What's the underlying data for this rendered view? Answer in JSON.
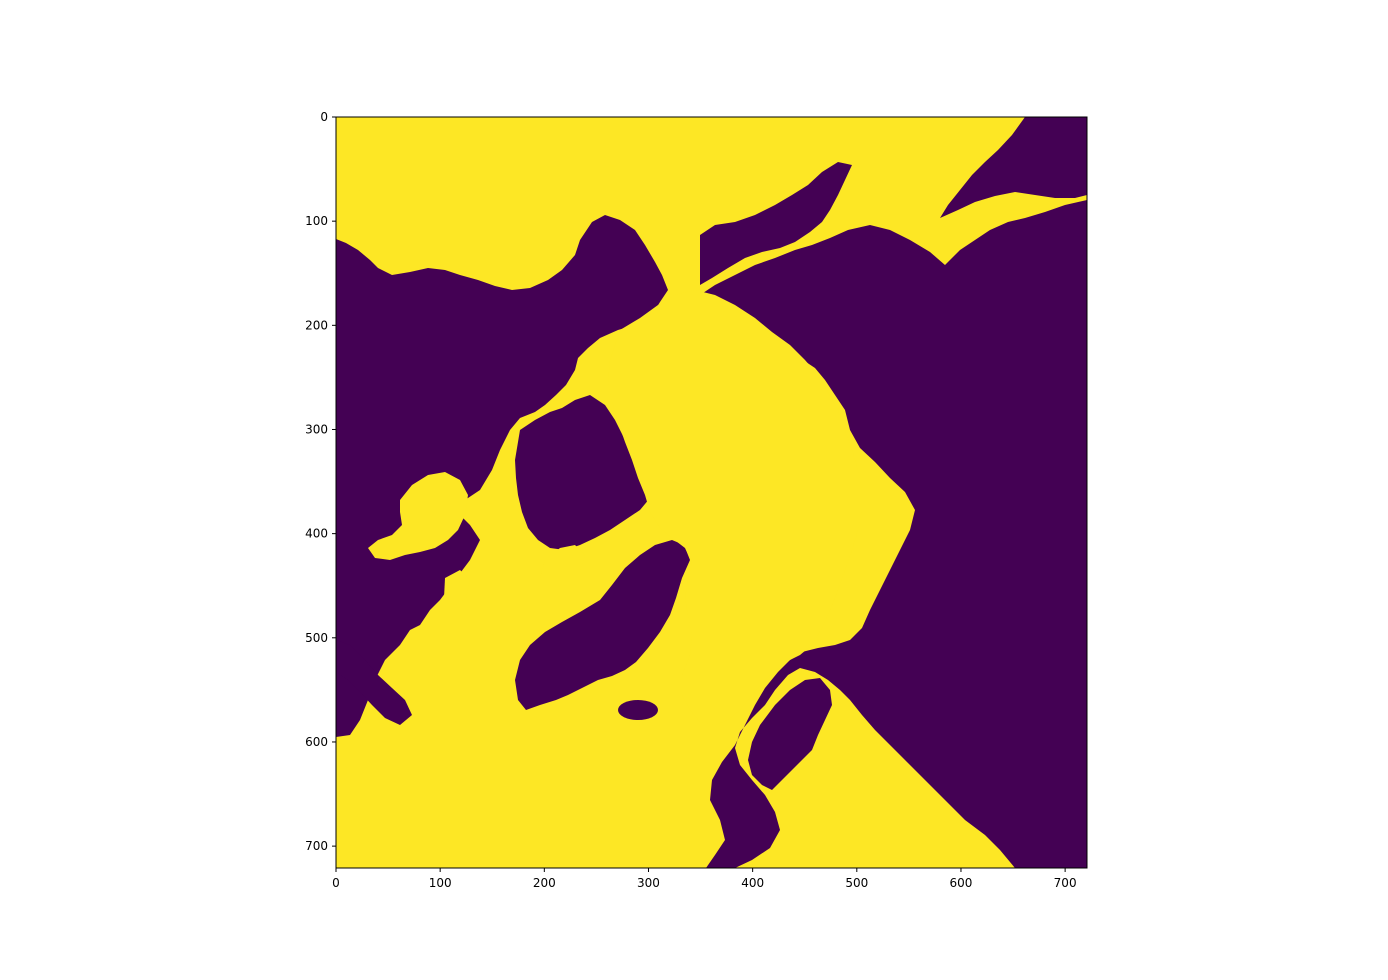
{
  "chart_data": {
    "type": "heatmap",
    "title": "",
    "xlabel": "",
    "ylabel": "",
    "image_size": [
      721,
      721
    ],
    "xlim": [
      0,
      721
    ],
    "ylim": [
      721,
      0
    ],
    "x_ticks": [
      0,
      100,
      200,
      300,
      400,
      500,
      600,
      700
    ],
    "y_ticks": [
      0,
      100,
      200,
      300,
      400,
      500,
      600,
      700
    ],
    "x_tick_labels": [
      "0",
      "100",
      "200",
      "300",
      "400",
      "500",
      "600",
      "700"
    ],
    "y_tick_labels": [
      "0",
      "100",
      "200",
      "300",
      "400",
      "500",
      "600",
      "700"
    ],
    "colormap": "viridis",
    "values": [
      0,
      1
    ],
    "colors": {
      "0": "#440154",
      "1": "#fde725"
    },
    "grid": false,
    "legend": "none"
  }
}
